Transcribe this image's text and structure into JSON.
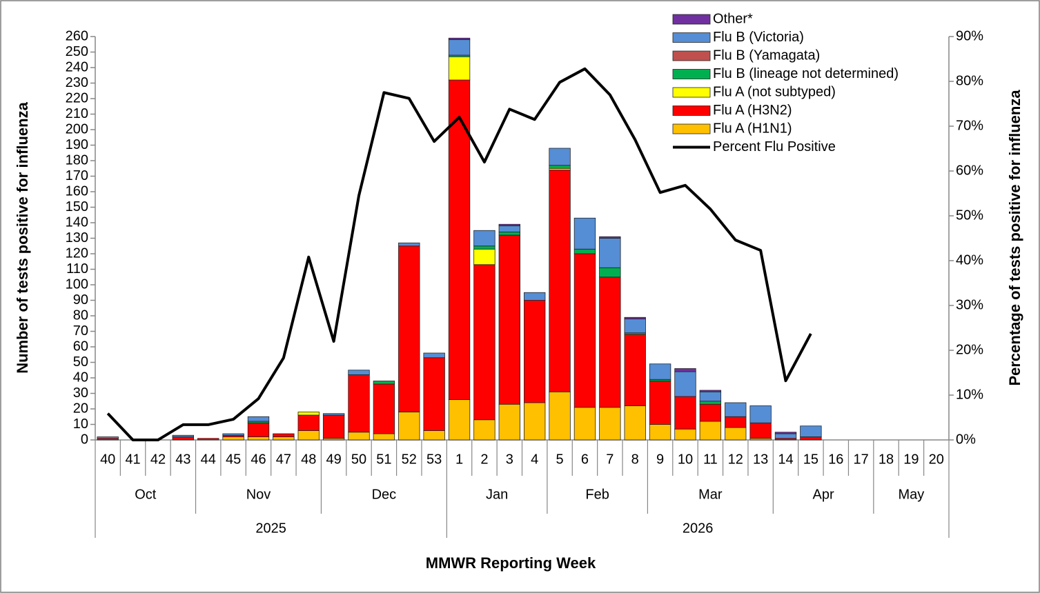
{
  "chart_data": {
    "type": "bar",
    "stacked": true,
    "y_title": "Number of tests positive for influenza",
    "y2_title": "Percentage  of  tests  positive for influenza",
    "x_title": "MMWR  Reporting Week",
    "categories": [
      "40",
      "41",
      "42",
      "43",
      "44",
      "45",
      "46",
      "47",
      "48",
      "49",
      "50",
      "51",
      "52",
      "53",
      "1",
      "2",
      "3",
      "4",
      "5",
      "6",
      "7",
      "8",
      "9",
      "10",
      "11",
      "12",
      "13",
      "14",
      "15",
      "16",
      "17",
      "18",
      "19",
      "20"
    ],
    "month_groups": [
      {
        "label": "Oct",
        "span": 4
      },
      {
        "label": "Nov",
        "span": 5
      },
      {
        "label": "Dec",
        "span": 5
      },
      {
        "label": "Jan",
        "span": 4
      },
      {
        "label": "Feb",
        "span": 4
      },
      {
        "label": "Mar",
        "span": 5
      },
      {
        "label": "Apr",
        "span": 4
      },
      {
        "label": "May",
        "span": 3
      }
    ],
    "year_groups": [
      {
        "label": "2025",
        "span": 14
      },
      {
        "label": "2026",
        "span": 20
      }
    ],
    "ylim": [
      0,
      260
    ],
    "yticks": [
      0,
      10,
      20,
      30,
      40,
      50,
      60,
      70,
      80,
      90,
      100,
      110,
      120,
      130,
      140,
      150,
      160,
      170,
      180,
      190,
      200,
      210,
      220,
      230,
      240,
      250,
      260
    ],
    "y2lim": [
      0,
      90
    ],
    "y2ticks": [
      {
        "value": 0,
        "label": "0%"
      },
      {
        "value": 10,
        "label": "10%"
      },
      {
        "value": 20,
        "label": "20%"
      },
      {
        "value": 30,
        "label": "30%"
      },
      {
        "value": 40,
        "label": "40%"
      },
      {
        "value": 50,
        "label": "50%"
      },
      {
        "value": 60,
        "label": "60%"
      },
      {
        "value": 70,
        "label": "70%"
      },
      {
        "value": 80,
        "label": "80%"
      },
      {
        "value": 90,
        "label": "90%"
      }
    ],
    "legend": "top-right",
    "series": [
      {
        "name": "Flu A (H1N1)",
        "color": "#FFC000",
        "values": [
          0,
          0,
          0,
          0,
          0,
          2,
          2,
          2,
          6,
          1,
          5,
          4,
          18,
          6,
          26,
          13,
          23,
          24,
          31,
          21,
          21,
          22,
          10,
          7,
          12,
          8,
          1,
          0,
          0,
          null,
          null,
          null,
          null,
          null
        ]
      },
      {
        "name": "Flu A (H3N2)",
        "color": "#FF0000",
        "values": [
          1,
          0,
          0,
          2,
          1,
          1,
          9,
          2,
          10,
          15,
          37,
          32,
          107,
          47,
          206,
          100,
          109,
          66,
          143,
          99,
          84,
          46,
          28,
          21,
          11,
          7,
          10,
          1,
          2,
          null,
          null,
          null,
          null,
          null
        ]
      },
      {
        "name": "Flu A (not subtyped)",
        "color": "#FFFF00",
        "values": [
          0,
          0,
          0,
          0,
          0,
          0,
          0,
          0,
          2,
          0,
          0,
          0,
          0,
          0,
          15,
          10,
          0,
          0,
          1,
          0,
          0,
          0,
          0,
          0,
          0,
          0,
          0,
          0,
          0,
          null,
          null,
          null,
          null,
          null
        ]
      },
      {
        "name": "Flu B (lineage not determined)",
        "color": "#00B050",
        "values": [
          0,
          0,
          0,
          0,
          0,
          0,
          1,
          0,
          0,
          0,
          0,
          2,
          0,
          0,
          1,
          2,
          2,
          0,
          2,
          3,
          6,
          1,
          1,
          0,
          2,
          0,
          0,
          0,
          0,
          null,
          null,
          null,
          null,
          null
        ]
      },
      {
        "name": "Flu B (Yamagata)",
        "color": "#C0504D",
        "values": [
          0,
          0,
          0,
          0,
          0,
          0,
          0,
          0,
          0,
          0,
          0,
          0,
          0,
          0,
          0,
          0,
          0,
          0,
          0,
          0,
          0,
          0,
          0,
          0,
          0,
          0,
          0,
          0,
          0,
          null,
          null,
          null,
          null,
          null
        ]
      },
      {
        "name": "Flu B (Victoria)",
        "color": "#558ED5",
        "values": [
          1,
          0,
          0,
          1,
          0,
          1,
          3,
          0,
          0,
          1,
          3,
          0,
          2,
          3,
          10,
          10,
          4,
          5,
          11,
          20,
          19,
          9,
          10,
          16,
          6,
          9,
          11,
          3,
          7,
          null,
          null,
          null,
          null,
          null
        ]
      },
      {
        "name": "Other*",
        "color": "#7030A0",
        "values": [
          0,
          0,
          0,
          0,
          0,
          0,
          0,
          0,
          0,
          0,
          0,
          0,
          0,
          0,
          1,
          0,
          1,
          0,
          0,
          0,
          1,
          1,
          0,
          2,
          1,
          0,
          0,
          1,
          0,
          null,
          null,
          null,
          null,
          null
        ]
      },
      {
        "name": "Percent Flu Positive",
        "color": "#000000",
        "type": "line",
        "axis": "y2",
        "values": [
          5.9,
          0,
          0,
          3.4,
          3.4,
          4.6,
          9.2,
          18.3,
          40.8,
          22,
          54.5,
          77.5,
          76.2,
          66.6,
          72,
          62,
          73.8,
          71.5,
          79.8,
          82.8,
          77,
          67,
          55.2,
          56.8,
          51.5,
          44.6,
          42.3,
          13.2,
          23.7,
          null,
          null,
          null,
          null,
          null
        ]
      }
    ]
  }
}
